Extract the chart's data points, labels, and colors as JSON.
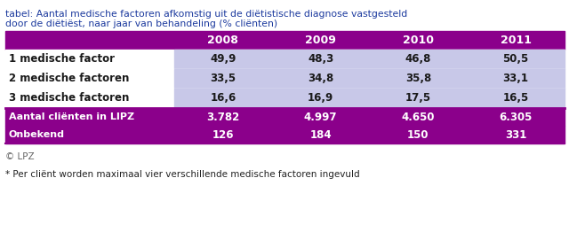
{
  "title_line1": "tabel: Aantal medische factoren afkomstig uit de diëtistische diagnose vastgesteld",
  "title_line2": "door de diëtiëst, naar jaar van behandeling (% cliënten)",
  "years": [
    "2008",
    "2009",
    "2010",
    "2011"
  ],
  "header_bg": "#8B008B",
  "header_text_color": "#FFFFFF",
  "row_bg_light": "#C8C8E8",
  "row_bg_purple": "#8B008B",
  "row_text_dark": "#1a1a1a",
  "row_text_white": "#FFFFFF",
  "rows_light": [
    {
      "label": "1 medische factor",
      "values": [
        "49,9",
        "48,3",
        "46,8",
        "50,5"
      ]
    },
    {
      "label": "2 medische factoren",
      "values": [
        "33,5",
        "34,8",
        "35,8",
        "33,1"
      ]
    },
    {
      "label": "3 medische factoren",
      "values": [
        "16,6",
        "16,9",
        "17,5",
        "16,5"
      ]
    }
  ],
  "rows_dark": [
    {
      "label": "Aantal cliënten in LIPZ",
      "values": [
        "3.782",
        "4.997",
        "4.650",
        "6.305"
      ]
    },
    {
      "label": "Onbekend",
      "values": [
        "126",
        "184",
        "150",
        "331"
      ]
    }
  ],
  "footer_copyright": "© LPZ",
  "footer_note": "* Per cliënt worden maximaal vier verschillende medische factoren ingevuld",
  "title_color": "#1C3A9E",
  "footer_color": "#666666",
  "note_color": "#222222"
}
